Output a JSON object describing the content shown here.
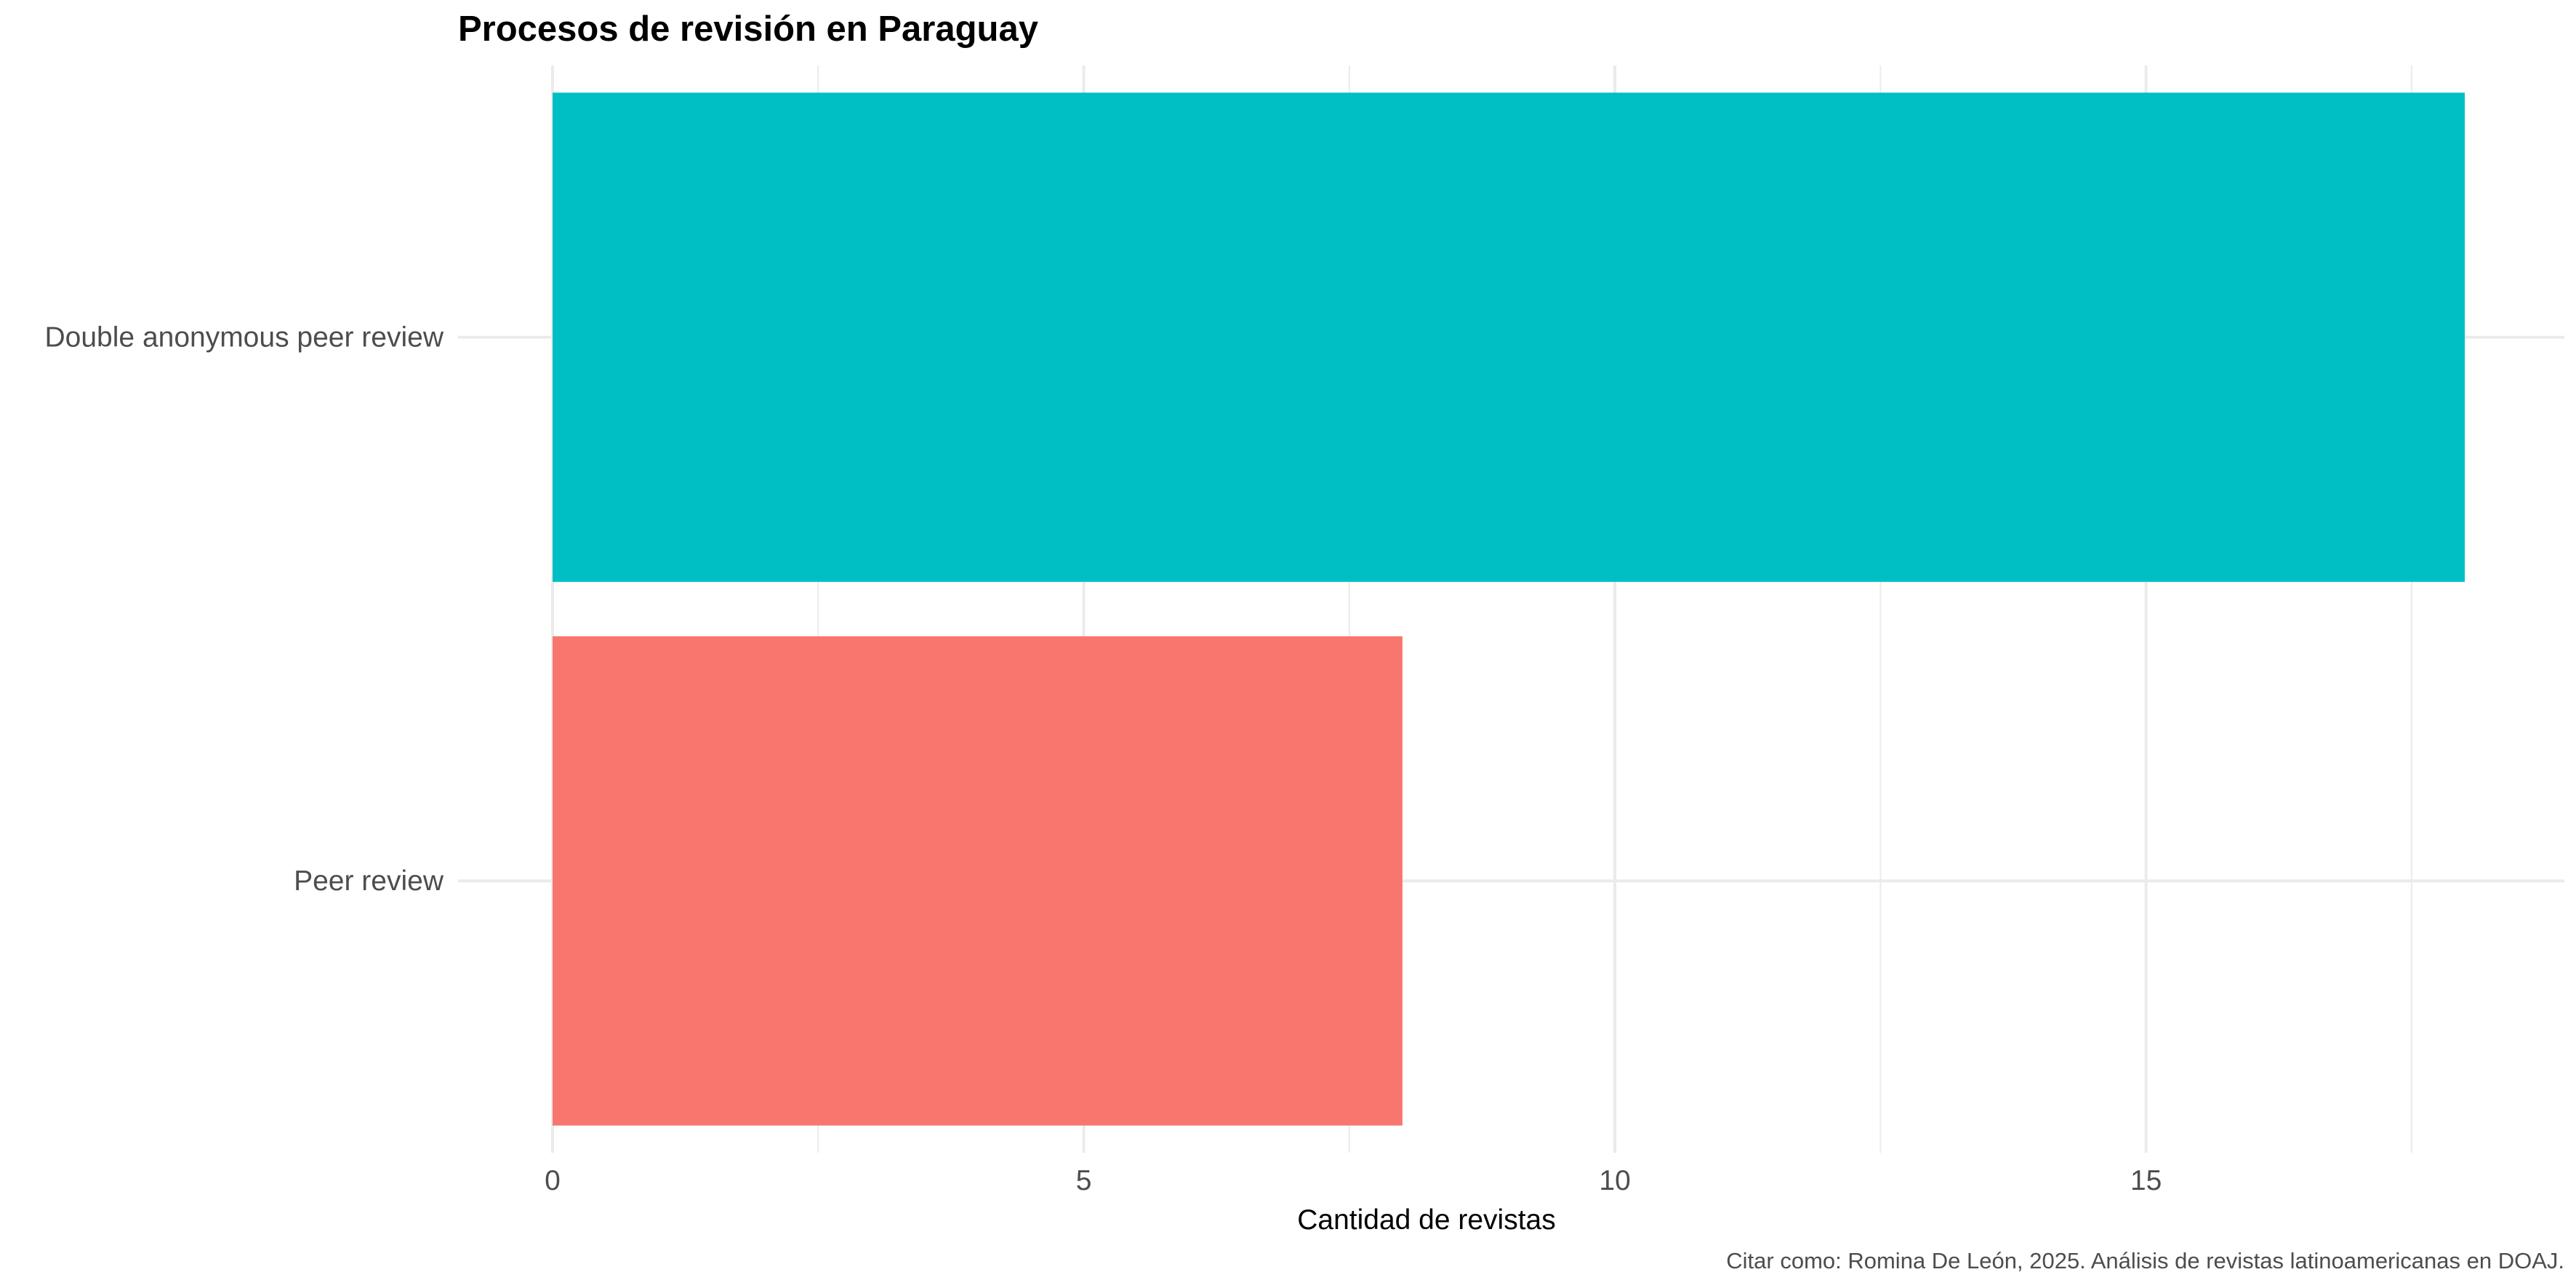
{
  "chart_data": {
    "type": "bar",
    "orientation": "horizontal",
    "title": "Procesos de revisión en Paraguay",
    "xlabel": "Cantidad de revistas",
    "ylabel": "",
    "categories": [
      "Double anonymous peer review",
      "Peer review"
    ],
    "values": [
      18,
      8
    ],
    "colors": [
      "#00BFC4",
      "#F8766D"
    ],
    "xlim": [
      0,
      18.9
    ],
    "xticks": [
      0,
      5,
      10,
      15
    ],
    "grid": true,
    "legend": "none",
    "caption": "Citar como: Romina De León, 2025. Análisis de revistas latinoamericanas en DOAJ."
  }
}
